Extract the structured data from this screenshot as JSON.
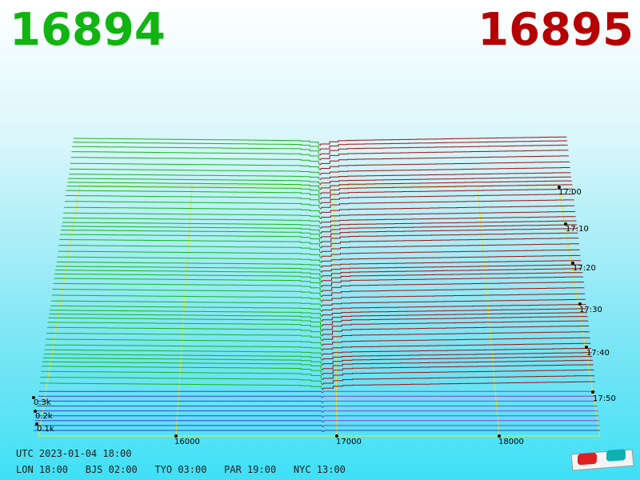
{
  "header": {
    "bid": "16894",
    "ask": "16895"
  },
  "axes": {
    "price_ticks": [
      "16000",
      "17000",
      "18000"
    ],
    "time_ticks": [
      "17:00",
      "17:10",
      "17:20",
      "17:30",
      "17:40",
      "17:50"
    ],
    "depth_ticks": [
      "0.3k",
      "0.2k",
      "0.1k"
    ]
  },
  "footer": {
    "utc": "UTC 2023-01-04 18:00",
    "cities": [
      "LON 18:00",
      "BJS 02:00",
      "TYO 03:00",
      "PAR 19:00",
      "NYC 13:00"
    ]
  }
}
